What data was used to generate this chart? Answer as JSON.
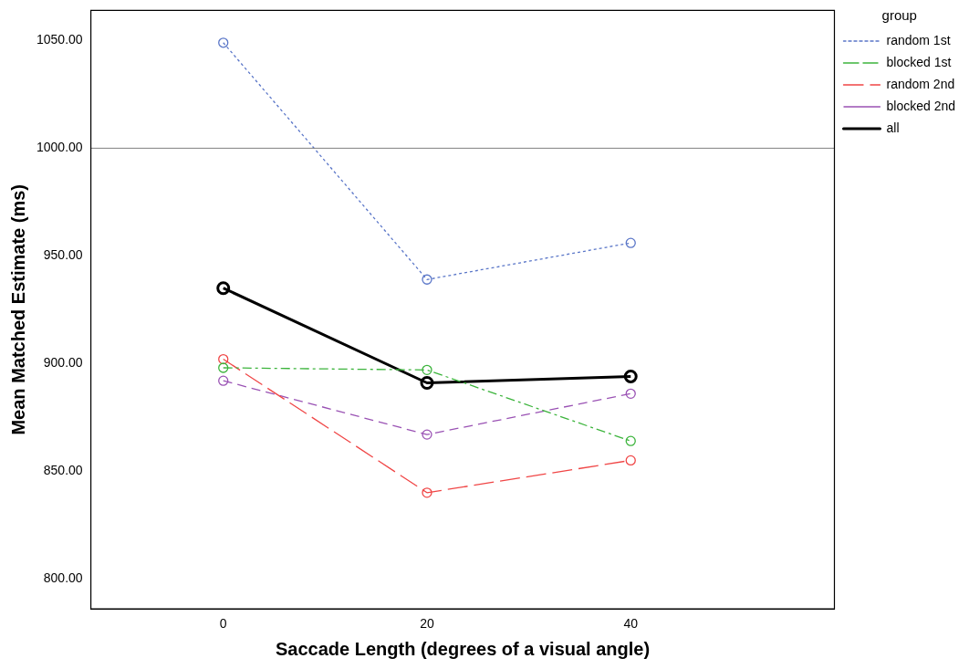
{
  "chart_data": {
    "type": "line",
    "xlabel": "Saccade Length (degrees of a visual angle)",
    "ylabel": "Mean Matched Estimate (ms)",
    "legend_title": "group",
    "x": [
      0,
      20,
      40
    ],
    "xlim": [
      -13,
      60
    ],
    "xticks": [
      0,
      20,
      40
    ],
    "ylim": [
      786,
      1064
    ],
    "yticks": [
      {
        "value": 800,
        "label": "800.00"
      },
      {
        "value": 850,
        "label": "850.00"
      },
      {
        "value": 900,
        "label": "900.00"
      },
      {
        "value": 950,
        "label": "950.00"
      },
      {
        "value": 1000,
        "label": "1000.00"
      },
      {
        "value": 1050,
        "label": "1050.00"
      }
    ],
    "grid": false,
    "legend": "right",
    "marker": "circle",
    "ref_lines": [
      {
        "axis": "y",
        "value": 1000,
        "color": "#808080"
      }
    ],
    "series": [
      {
        "name": "random 1st",
        "color": "#5a76c8",
        "line_style": "dotted",
        "values": [
          1049,
          939,
          956
        ]
      },
      {
        "name": "blocked 1st",
        "color": "#3cb43c",
        "line_style": "dashdot",
        "values": [
          898,
          897,
          864
        ]
      },
      {
        "name": "random 2nd",
        "color": "#f04646",
        "line_style": "longdash",
        "values": [
          902,
          840,
          855
        ]
      },
      {
        "name": "blocked 2nd",
        "color": "#9a52b4",
        "line_style": "dashed",
        "values": [
          892,
          867,
          886
        ]
      },
      {
        "name": "all",
        "color": "#000000",
        "line_style": "solid",
        "values": [
          935,
          891,
          894
        ]
      }
    ]
  }
}
